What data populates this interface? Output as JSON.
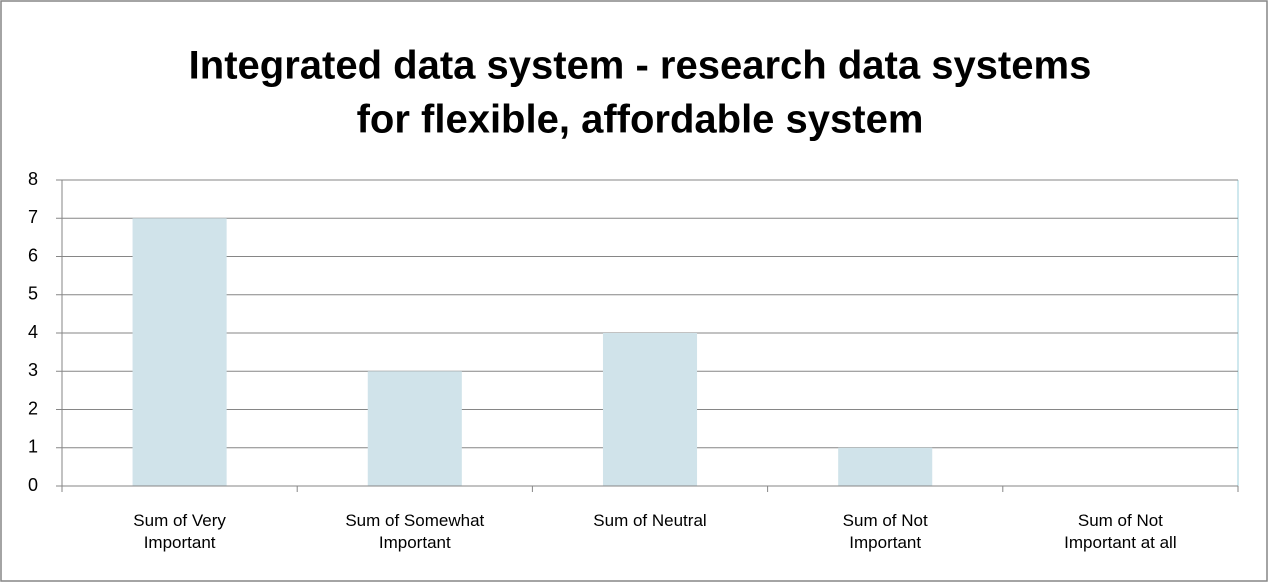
{
  "chart_data": {
    "type": "bar",
    "title": [
      "Integrated data system - research data systems",
      "for flexible, affordable system"
    ],
    "categories": [
      "Sum of Very Important",
      "Sum of Somewhat Important",
      "Sum of Neutral",
      "Sum of Not Important",
      "Sum of Not Important at all"
    ],
    "values": [
      7,
      3,
      4,
      1,
      0
    ],
    "color": "#d0e3ea",
    "ylim": [
      0,
      8
    ],
    "yticks": [
      0,
      1,
      2,
      3,
      4,
      5,
      6,
      7,
      8
    ],
    "grid": true
  }
}
